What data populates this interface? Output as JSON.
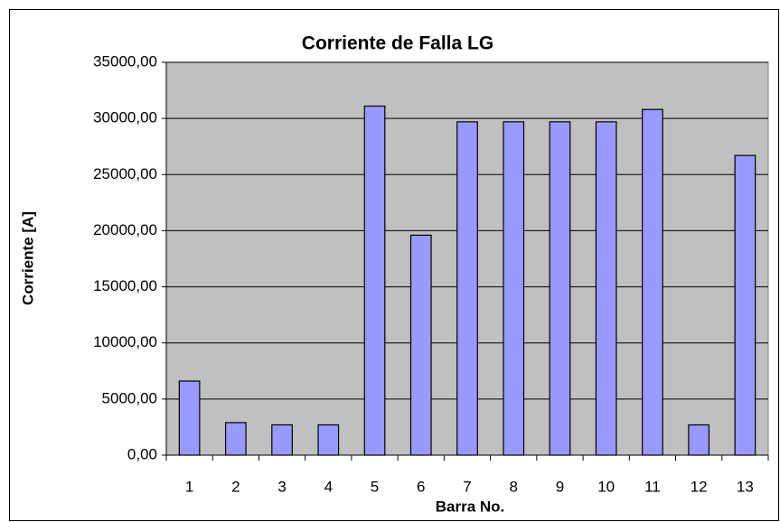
{
  "chart_data": {
    "type": "bar",
    "title": "Corriente de Falla LG",
    "x_label": "Barra No.",
    "y_label": "Corriente [A]",
    "categories": [
      "1",
      "2",
      "3",
      "4",
      "5",
      "6",
      "7",
      "8",
      "9",
      "10",
      "11",
      "12",
      "13"
    ],
    "values": [
      6600,
      2900,
      2700,
      2700,
      31100,
      19600,
      29700,
      29700,
      29700,
      29700,
      30800,
      2700,
      26700
    ],
    "color": "#9999ff",
    "ylim": [
      0,
      35000
    ],
    "yticks": [
      {
        "value": 0,
        "label": "0,00"
      },
      {
        "value": 5000,
        "label": "5000,00"
      },
      {
        "value": 10000,
        "label": "10000,00"
      },
      {
        "value": 15000,
        "label": "15000,00"
      },
      {
        "value": 20000,
        "label": "20000,00"
      },
      {
        "value": 25000,
        "label": "25000,00"
      },
      {
        "value": 30000,
        "label": "30000,00"
      },
      {
        "value": 35000,
        "label": "35000,00"
      }
    ],
    "grid": true
  }
}
